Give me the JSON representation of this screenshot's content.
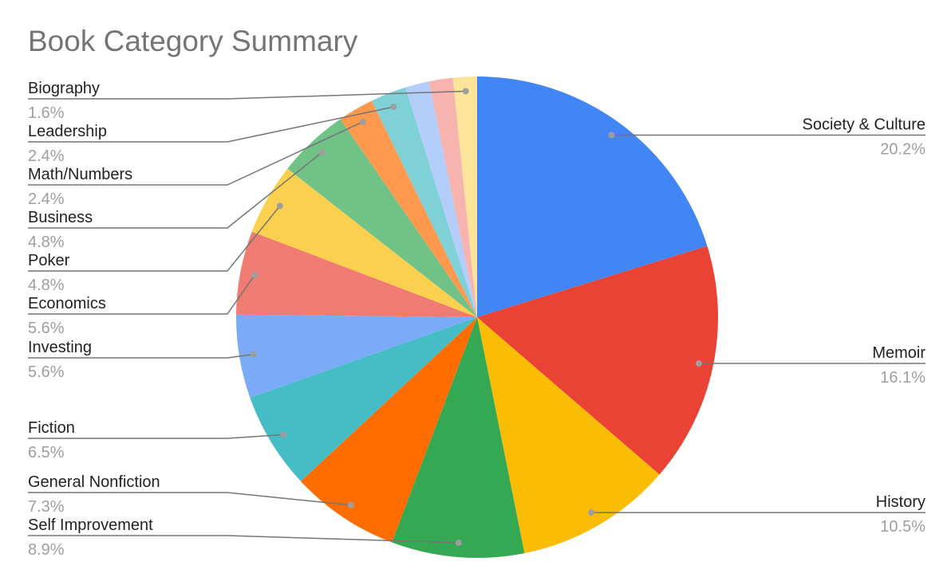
{
  "chart_data": {
    "type": "pie",
    "title": "Book Category Summary",
    "categories": [
      "Society & Culture",
      "Memoir",
      "History",
      "Self Improvement",
      "General Nonfiction",
      "Fiction",
      "Investing",
      "Economics",
      "Poker",
      "Business",
      "Math/Numbers",
      "Leadership",
      null,
      null,
      "Biography"
    ],
    "values": [
      20.2,
      16.1,
      10.5,
      8.9,
      7.3,
      6.5,
      5.6,
      5.6,
      4.8,
      4.8,
      2.4,
      2.4,
      1.6,
      1.6,
      1.6
    ],
    "value_labels": [
      "20.2%",
      "16.1%",
      "10.5%",
      "8.9%",
      "7.3%",
      "6.5%",
      "5.6%",
      "5.6%",
      "4.8%",
      "4.8%",
      "2.4%",
      "2.4%",
      null,
      null,
      "1.6%"
    ],
    "colors": [
      "#4285f4",
      "#ea4335",
      "#fbbc04",
      "#34a853",
      "#ff6d01",
      "#46bdc6",
      "#7baaf7",
      "#f07b72",
      "#fcd04f",
      "#71c287",
      "#ff994d",
      "#7ed1d7",
      "#b3cefb",
      "#f7b4ae",
      "#fde49b"
    ]
  }
}
